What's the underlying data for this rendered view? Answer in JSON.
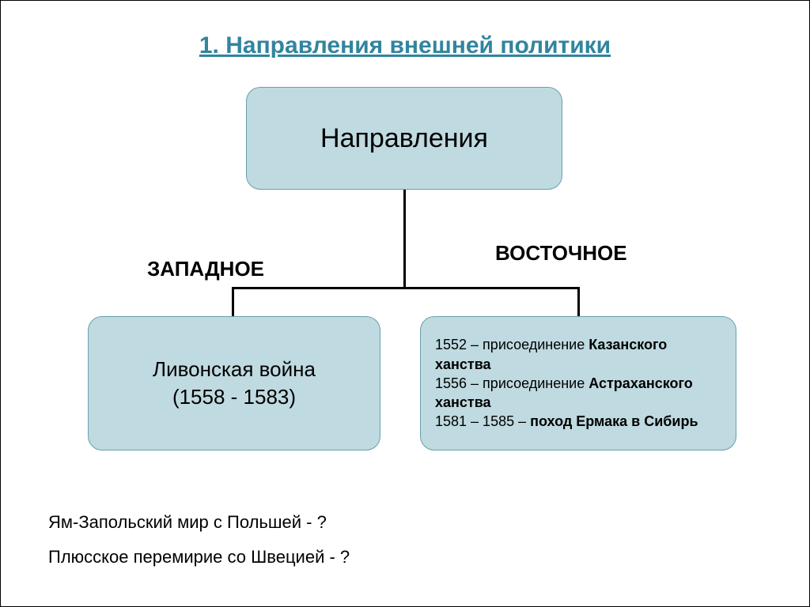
{
  "title": "1. Направления внешней политики",
  "diagram": {
    "type": "tree",
    "background_color": "#ffffff",
    "node_fill": "#bfdae0",
    "node_border": "#6aa0ac",
    "node_border_radius": 18,
    "connector_color": "#000000",
    "root": {
      "label": "Направления",
      "fontsize": 34
    },
    "branches": {
      "west": {
        "label": "ЗАПАДНОЕ",
        "label_fontsize": 26,
        "leaf": {
          "line1": "Ливонская война",
          "line2": "(1558 - 1583)",
          "fontsize": 26
        }
      },
      "east": {
        "label": "ВОСТОЧНОЕ",
        "label_fontsize": 26,
        "leaf": {
          "fontsize": 18,
          "items": [
            {
              "prefix": "1552 – присоединение ",
              "bold": "Казанского ханства"
            },
            {
              "prefix": "1556 – присоединение ",
              "bold": "Астраханского ханства"
            },
            {
              "prefix": "1581 – 1585 – ",
              "bold": "поход Ермака в Сибирь"
            }
          ]
        }
      }
    }
  },
  "questions": {
    "q1": "Ям-Запольский мир с Польшей - ?",
    "q2": "Плюсское перемирие со Швецией - ?",
    "fontsize": 22
  },
  "colors": {
    "title": "#31859e",
    "text": "#000000"
  }
}
